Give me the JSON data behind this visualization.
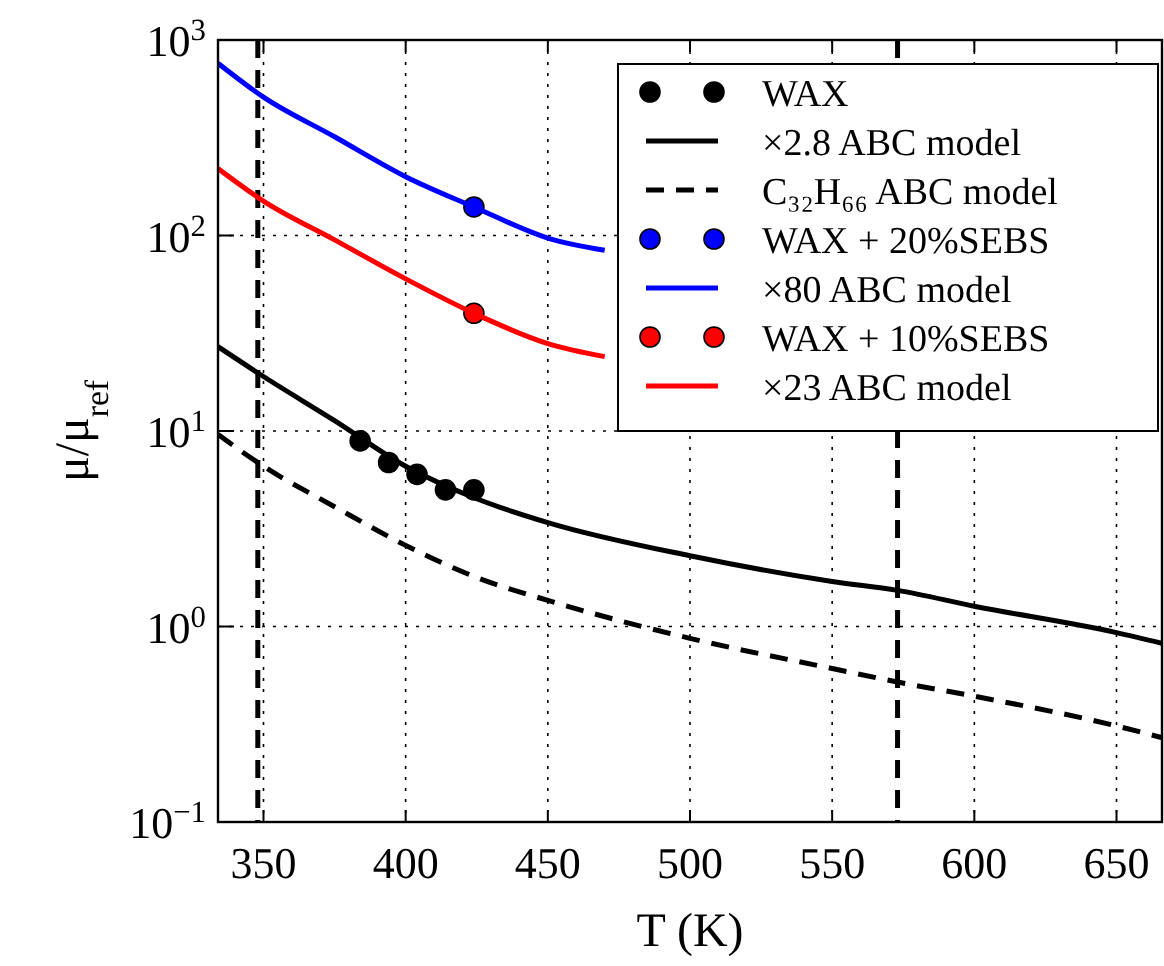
{
  "chart_data": {
    "type": "line",
    "xlabel": "T (K)",
    "ylabel": "μ/μ$_{ref}$",
    "log": "y",
    "grid": true,
    "legend": "top right",
    "xlim": [
      334,
      666
    ],
    "ylim": [
      0.1,
      1000
    ],
    "xticks": [
      350,
      400,
      450,
      500,
      550,
      600,
      650
    ],
    "yticks": [
      {
        "value": 0.1,
        "label": "10$^{−1}$"
      },
      {
        "value": 1,
        "label": "10$^{0}$"
      },
      {
        "value": 10,
        "label": "10$^{1}$"
      },
      {
        "value": 100,
        "label": "10$^{2}$"
      },
      {
        "value": 1000,
        "label": "10$^{3}$"
      }
    ],
    "ref_lines": [
      {
        "axis": "x",
        "value": 348,
        "color": "#000000",
        "line_style": "dashed"
      },
      {
        "axis": "x",
        "value": 573,
        "color": "#000000",
        "line_style": "dashed"
      }
    ],
    "series": [
      {
        "name": "WAX",
        "type": "scatter",
        "marker": "circle",
        "color": "#000000",
        "x": [
          384,
          394,
          404,
          414,
          424
        ],
        "values": [
          8.9,
          6.9,
          6.0,
          5.0,
          5.0
        ]
      },
      {
        "name": "×2.8 ABC model",
        "line_style": "solid",
        "color": "#000000",
        "x": [
          334,
          350,
          375,
          400,
          425,
          450,
          500,
          550,
          573,
          600,
          650,
          666
        ],
        "values": [
          27,
          19,
          11.3,
          6.6,
          4.5,
          3.4,
          2.3,
          1.7,
          1.53,
          1.27,
          0.93,
          0.82
        ]
      },
      {
        "name": "C₃₂H₆₆ ABC model",
        "line_style": "dashed",
        "color": "#000000",
        "x": [
          334,
          350,
          375,
          400,
          425,
          450,
          500,
          550,
          573,
          600,
          650,
          666
        ],
        "values": [
          9.6,
          6.6,
          4.1,
          2.6,
          1.78,
          1.36,
          0.87,
          0.61,
          0.52,
          0.44,
          0.31,
          0.27
        ]
      },
      {
        "name": "WAX + 20%SEBS",
        "type": "scatter",
        "marker": "circle",
        "color": "#0000ff",
        "x": [
          424
        ],
        "values": [
          140
        ]
      },
      {
        "name": "×80 ABC model",
        "line_style": "solid",
        "color": "#0000ff",
        "x": [
          334,
          350,
          375,
          400,
          424,
          450,
          470
        ],
        "values": [
          760,
          510,
          320,
          200,
          140,
          97,
          84
        ]
      },
      {
        "name": "WAX + 10%SEBS",
        "type": "scatter",
        "marker": "circle",
        "color": "#ff0000",
        "x": [
          424
        ],
        "values": [
          40
        ]
      },
      {
        "name": "×23 ABC model",
        "line_style": "solid",
        "color": "#ff0000",
        "x": [
          334,
          350,
          375,
          400,
          424,
          450,
          470
        ],
        "values": [
          220,
          150,
          95,
          60,
          40,
          28,
          24
        ]
      }
    ]
  }
}
